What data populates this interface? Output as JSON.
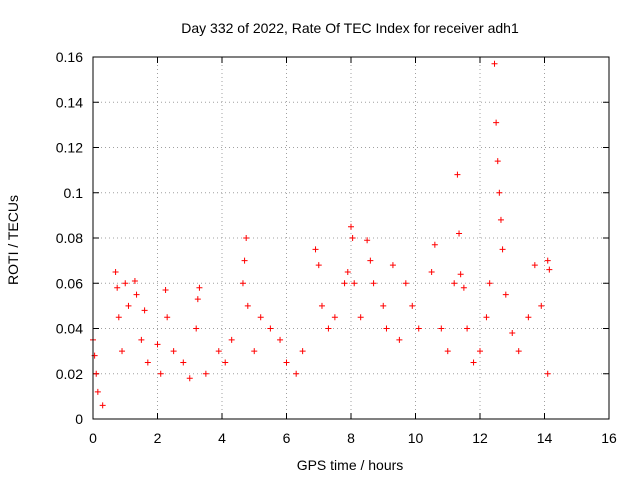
{
  "chart_data": {
    "type": "scatter",
    "title": "Day 332 of 2022, Rate Of TEC Index for receiver adh1",
    "xlabel": "GPS time / hours",
    "ylabel": "ROTI / TECUs",
    "xlim": [
      0,
      16
    ],
    "ylim": [
      0,
      0.16
    ],
    "xticks": [
      "0",
      "2",
      "4",
      "6",
      "8",
      "10",
      "12",
      "14",
      "16"
    ],
    "yticks": [
      "0",
      "0.02",
      "0.04",
      "0.06",
      "0.08",
      "0.1",
      "0.12",
      "0.14",
      "0.16"
    ],
    "grid": true,
    "marker": "+",
    "color": "#ff0000",
    "series": [
      {
        "points": [
          [
            0.0,
            0.035
          ],
          [
            0.05,
            0.028
          ],
          [
            0.1,
            0.02
          ],
          [
            0.15,
            0.012
          ],
          [
            0.3,
            0.006
          ],
          [
            0.7,
            0.065
          ],
          [
            0.75,
            0.058
          ],
          [
            0.8,
            0.045
          ],
          [
            0.9,
            0.03
          ],
          [
            1.0,
            0.06
          ],
          [
            1.1,
            0.05
          ],
          [
            1.3,
            0.061
          ],
          [
            1.35,
            0.055
          ],
          [
            1.5,
            0.035
          ],
          [
            1.6,
            0.048
          ],
          [
            1.7,
            0.025
          ],
          [
            2.0,
            0.033
          ],
          [
            2.1,
            0.02
          ],
          [
            2.25,
            0.057
          ],
          [
            2.3,
            0.045
          ],
          [
            2.5,
            0.03
          ],
          [
            2.8,
            0.025
          ],
          [
            3.0,
            0.018
          ],
          [
            3.3,
            0.058
          ],
          [
            3.25,
            0.053
          ],
          [
            3.2,
            0.04
          ],
          [
            3.5,
            0.02
          ],
          [
            3.9,
            0.03
          ],
          [
            4.1,
            0.025
          ],
          [
            4.3,
            0.035
          ],
          [
            4.75,
            0.08
          ],
          [
            4.7,
            0.07
          ],
          [
            4.65,
            0.06
          ],
          [
            4.8,
            0.05
          ],
          [
            5.0,
            0.03
          ],
          [
            5.2,
            0.045
          ],
          [
            5.5,
            0.04
          ],
          [
            5.8,
            0.035
          ],
          [
            6.0,
            0.025
          ],
          [
            6.3,
            0.02
          ],
          [
            6.5,
            0.03
          ],
          [
            6.9,
            0.075
          ],
          [
            7.0,
            0.068
          ],
          [
            7.1,
            0.05
          ],
          [
            7.3,
            0.04
          ],
          [
            7.5,
            0.045
          ],
          [
            7.8,
            0.06
          ],
          [
            7.9,
            0.065
          ],
          [
            8.0,
            0.085
          ],
          [
            8.05,
            0.08
          ],
          [
            8.1,
            0.06
          ],
          [
            8.3,
            0.045
          ],
          [
            8.5,
            0.079
          ],
          [
            8.6,
            0.07
          ],
          [
            8.7,
            0.06
          ],
          [
            9.0,
            0.05
          ],
          [
            9.1,
            0.04
          ],
          [
            9.3,
            0.068
          ],
          [
            9.5,
            0.035
          ],
          [
            9.7,
            0.06
          ],
          [
            9.9,
            0.05
          ],
          [
            10.1,
            0.04
          ],
          [
            10.5,
            0.065
          ],
          [
            10.6,
            0.077
          ],
          [
            10.8,
            0.04
          ],
          [
            11.0,
            0.03
          ],
          [
            11.2,
            0.06
          ],
          [
            11.3,
            0.108
          ],
          [
            11.35,
            0.082
          ],
          [
            11.4,
            0.064
          ],
          [
            11.5,
            0.058
          ],
          [
            11.6,
            0.04
          ],
          [
            11.8,
            0.025
          ],
          [
            12.0,
            0.03
          ],
          [
            12.2,
            0.045
          ],
          [
            12.3,
            0.06
          ],
          [
            12.45,
            0.157
          ],
          [
            12.5,
            0.131
          ],
          [
            12.55,
            0.114
          ],
          [
            12.6,
            0.1
          ],
          [
            12.65,
            0.088
          ],
          [
            12.7,
            0.075
          ],
          [
            12.8,
            0.055
          ],
          [
            13.0,
            0.038
          ],
          [
            13.2,
            0.03
          ],
          [
            13.5,
            0.045
          ],
          [
            13.7,
            0.068
          ],
          [
            13.9,
            0.05
          ],
          [
            14.1,
            0.07
          ],
          [
            14.15,
            0.066
          ],
          [
            14.1,
            0.02
          ]
        ]
      }
    ]
  }
}
